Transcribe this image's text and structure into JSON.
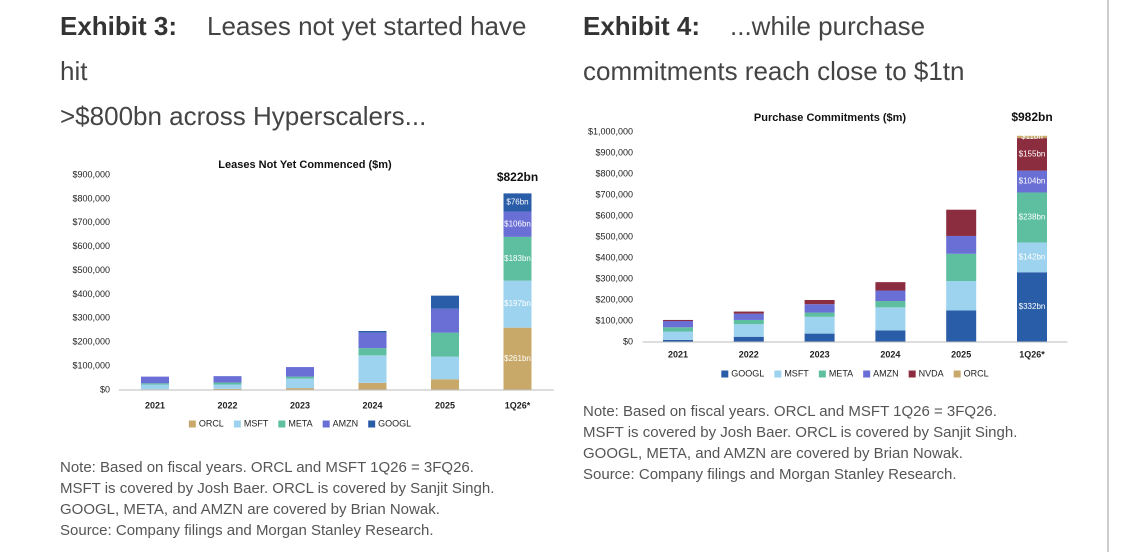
{
  "exhibits": [
    {
      "label": "Exhibit 3:",
      "heading": "Leases not yet started have hit",
      "heading_cont": ">$800bn across Hyperscalers...",
      "notes": [
        "Note: Based on fiscal years. ORCL and MSFT 1Q26 = 3FQ26.",
        "MSFT is covered by Josh Baer. ORCL is covered by Sanjit Singh.",
        "GOOGL, META, and AMZN are covered by Brian Nowak.",
        "Source: Company filings and Morgan Stanley Research."
      ]
    },
    {
      "label": "Exhibit 4:",
      "heading": "...while purchase commitments reach close to $1tn",
      "notes": [
        "Note: Based on fiscal years. ORCL and MSFT 1Q26 = 3FQ26.",
        "MSFT is covered by Josh Baer. ORCL is covered by Sanjit Singh.",
        "GOOGL, META, and AMZN are covered by Brian Nowak.",
        "Source: Company filings and Morgan Stanley Research."
      ]
    }
  ],
  "chart_data": [
    {
      "type": "stacked_bar",
      "title": "Leases Not Yet Commenced ($m)",
      "annotation": "$822bn",
      "categories": [
        "2021",
        "2022",
        "2023",
        "2024",
        "2025",
        "1Q26*"
      ],
      "ylim": [
        0,
        900000
      ],
      "yticks": [
        {
          "value": 0,
          "label": "$0"
        },
        {
          "value": 100000,
          "label": "$100,000"
        },
        {
          "value": 200000,
          "label": "$200,000"
        },
        {
          "value": 300000,
          "label": "$300,000"
        },
        {
          "value": 400000,
          "label": "$400,000"
        },
        {
          "value": 500000,
          "label": "$500,000"
        },
        {
          "value": 600000,
          "label": "$600,000"
        },
        {
          "value": 700000,
          "label": "$700,000"
        },
        {
          "value": 800000,
          "label": "$800,000"
        },
        {
          "value": 900000,
          "label": "$900,000"
        }
      ],
      "series": [
        {
          "name": "ORCL",
          "color": "#c8a96a",
          "values": [
            3000,
            5000,
            8000,
            30000,
            45000,
            261000
          ],
          "value_labels": [
            null,
            null,
            null,
            null,
            null,
            "$261bn"
          ]
        },
        {
          "name": "MSFT",
          "color": "#9dd3ee",
          "values": [
            20000,
            18000,
            40000,
            115000,
            95000,
            197000
          ],
          "value_labels": [
            null,
            null,
            null,
            null,
            null,
            "$197bn"
          ]
        },
        {
          "name": "META",
          "color": "#5dbf9f",
          "values": [
            5000,
            8000,
            8000,
            30000,
            100000,
            183000
          ],
          "value_labels": [
            null,
            null,
            null,
            null,
            null,
            "$183bn"
          ]
        },
        {
          "name": "AMZN",
          "color": "#6a6fd6",
          "values": [
            28000,
            27000,
            40000,
            65000,
            100000,
            106000
          ],
          "value_labels": [
            null,
            null,
            null,
            null,
            null,
            "$106bn"
          ]
        },
        {
          "name": "GOOGL",
          "color": "#2a5da8",
          "values": [
            0,
            0,
            0,
            7000,
            55000,
            76000
          ],
          "value_labels": [
            null,
            null,
            null,
            null,
            null,
            "$76bn"
          ]
        }
      ]
    },
    {
      "type": "stacked_bar",
      "title": "Purchase Commitments ($m)",
      "annotation": "$982bn",
      "categories": [
        "2021",
        "2022",
        "2023",
        "2024",
        "2025",
        "1Q26*"
      ],
      "ylim": [
        0,
        1000000
      ],
      "yticks": [
        {
          "value": 0,
          "label": "$0"
        },
        {
          "value": 100000,
          "label": "$100,000"
        },
        {
          "value": 200000,
          "label": "$200,000"
        },
        {
          "value": 300000,
          "label": "$300,000"
        },
        {
          "value": 400000,
          "label": "$400,000"
        },
        {
          "value": 500000,
          "label": "$500,000"
        },
        {
          "value": 600000,
          "label": "$600,000"
        },
        {
          "value": 700000,
          "label": "$700,000"
        },
        {
          "value": 800000,
          "label": "$800,000"
        },
        {
          "value": 900000,
          "label": "$900,000"
        },
        {
          "value": 1000000,
          "label": "$1,000,000"
        }
      ],
      "series": [
        {
          "name": "GOOGL",
          "color": "#2a5da8",
          "values": [
            10000,
            25000,
            40000,
            55000,
            150000,
            332000
          ],
          "value_labels": [
            null,
            null,
            null,
            null,
            null,
            "$332bn"
          ]
        },
        {
          "name": "MSFT",
          "color": "#9dd3ee",
          "values": [
            40000,
            60000,
            80000,
            110000,
            140000,
            142000
          ],
          "value_labels": [
            null,
            null,
            null,
            null,
            null,
            "$142bn"
          ]
        },
        {
          "name": "META",
          "color": "#5dbf9f",
          "values": [
            20000,
            20000,
            20000,
            30000,
            130000,
            238000
          ],
          "value_labels": [
            null,
            null,
            null,
            null,
            null,
            "$238bn"
          ]
        },
        {
          "name": "AMZN",
          "color": "#6a6fd6",
          "values": [
            30000,
            30000,
            40000,
            50000,
            85000,
            104000
          ],
          "value_labels": [
            null,
            null,
            null,
            null,
            null,
            "$104bn"
          ]
        },
        {
          "name": "NVDA",
          "color": "#8b2d3f",
          "values": [
            5000,
            10000,
            20000,
            40000,
            125000,
            155000
          ],
          "value_labels": [
            null,
            null,
            null,
            null,
            null,
            "$155bn"
          ]
        },
        {
          "name": "ORCL",
          "color": "#c8a96a",
          "values": [
            0,
            0,
            0,
            0,
            0,
            11000
          ],
          "value_labels": [
            null,
            null,
            null,
            null,
            null,
            "$11bn"
          ]
        }
      ]
    }
  ]
}
